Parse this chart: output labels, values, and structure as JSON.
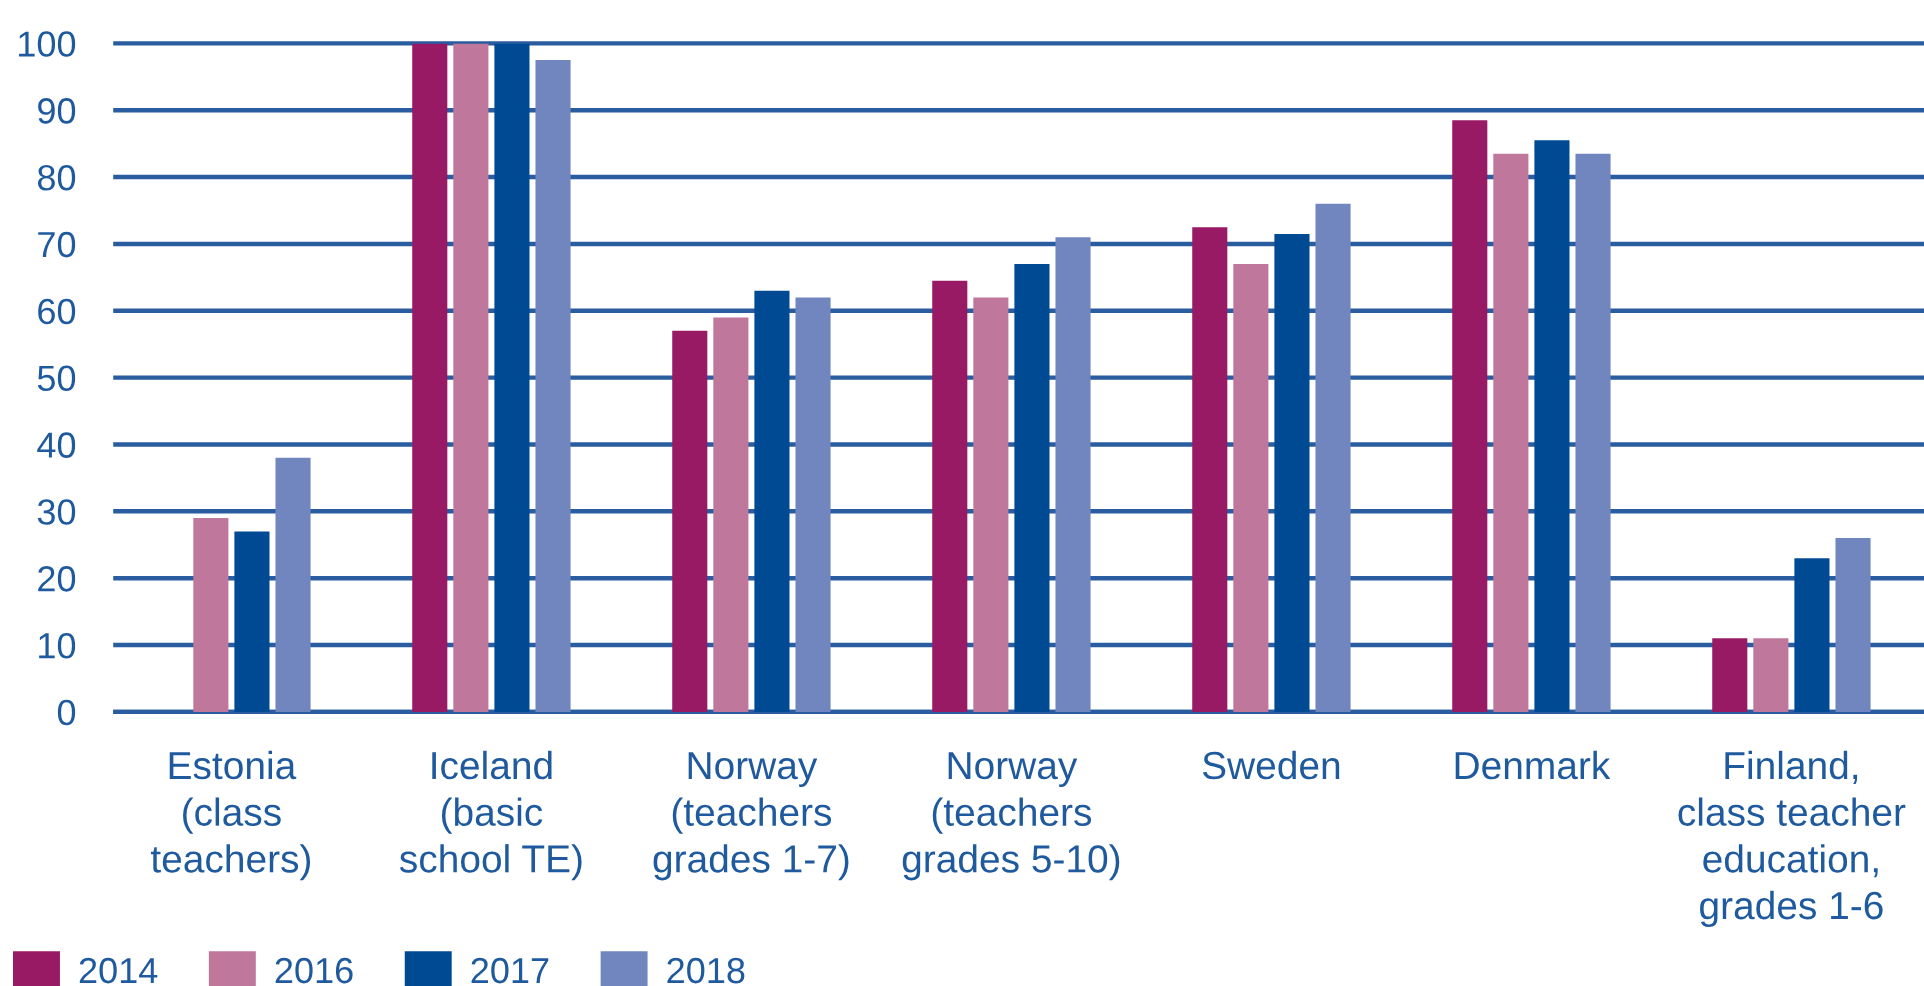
{
  "chart_data": {
    "type": "bar",
    "categories": [
      "Estonia\n(class\nteachers)",
      "Iceland\n(basic\nschool TE)",
      "Norway\n(teachers\ngrades 1-7)",
      "Norway\n(teachers\ngrades 5-10)",
      "Sweden",
      "Denmark",
      "Finland,\nclass teacher\neducation,\ngrades 1-6"
    ],
    "series": [
      {
        "name": "2014",
        "color": "#981a64",
        "values": [
          null,
          100,
          57,
          64.5,
          72.5,
          88.5,
          11
        ]
      },
      {
        "name": "2016",
        "color": "#bf779c",
        "values": [
          29,
          100,
          59,
          62,
          67,
          83.5,
          11
        ]
      },
      {
        "name": "2017",
        "color": "#004a94",
        "values": [
          27,
          100,
          63,
          67,
          71.5,
          85.5,
          23
        ]
      },
      {
        "name": "2018",
        "color": "#7186bf",
        "values": [
          38,
          97.5,
          62,
          71,
          76,
          83.5,
          26
        ]
      }
    ],
    "ylim": [
      0,
      100
    ],
    "yticks": [
      0,
      10,
      20,
      30,
      40,
      50,
      60,
      70,
      80,
      90,
      100
    ],
    "grid": "y",
    "legend": "bottom left"
  }
}
